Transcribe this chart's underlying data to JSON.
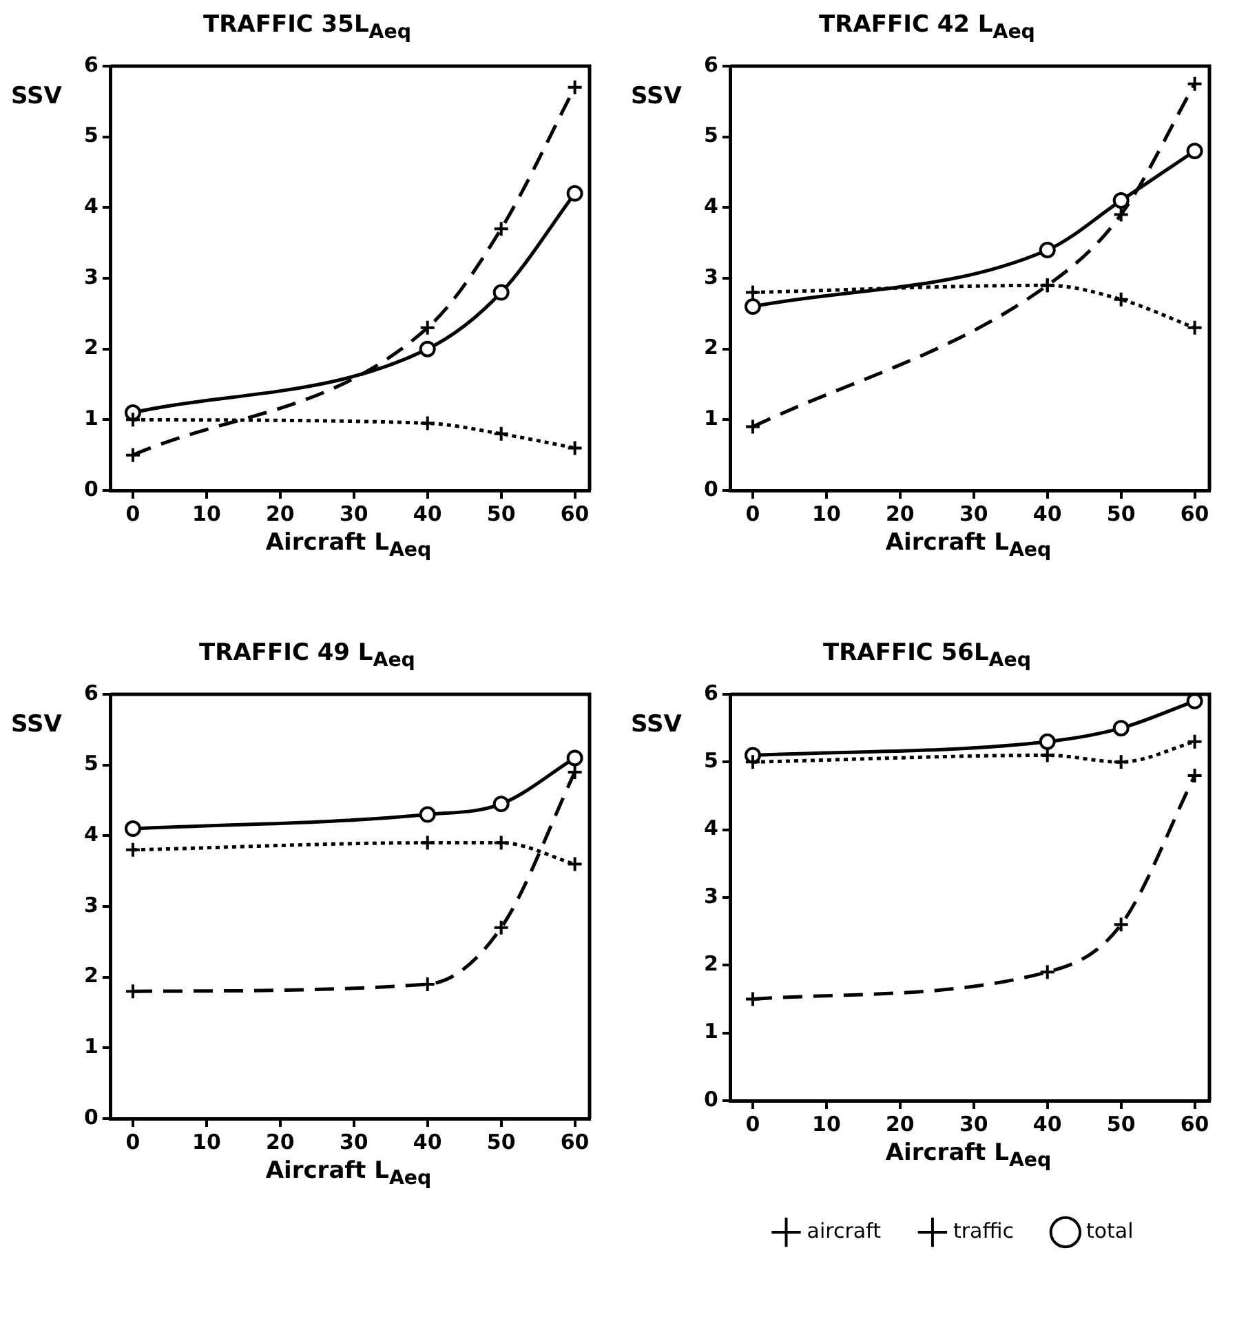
{
  "chart_data": [
    {
      "type": "line",
      "title": "TRAFFIC 35L$_{Aeq}$",
      "xlabel": "Aircraft L$_{Aeq}$",
      "ylabel": "SSV",
      "x": [
        0,
        40,
        50,
        60
      ],
      "xlim": [
        -3,
        62
      ],
      "xticks": [
        0,
        10,
        20,
        30,
        40,
        50,
        60
      ],
      "ylim": [
        0,
        6
      ],
      "yticks": [
        0,
        1,
        2,
        3,
        4,
        5,
        6
      ],
      "grid": false,
      "legend": false,
      "series": [
        {
          "color": "#000000",
          "marker": "cross",
          "line_style": "dashed",
          "values": [
            0.5,
            2.3,
            3.7,
            5.7
          ]
        },
        {
          "color": "#000000",
          "marker": "cross",
          "line_style": "dotted",
          "values": [
            1.0,
            0.95,
            0.8,
            0.6
          ]
        },
        {
          "color": "#000000",
          "marker": "circle",
          "line_style": "solid",
          "values": [
            1.1,
            2.0,
            2.8,
            4.2
          ]
        }
      ]
    },
    {
      "type": "line",
      "title": "TRAFFIC 42 L$_{Aeq}$",
      "xlabel": "Aircraft L$_{Aeq}$",
      "ylabel": "SSV",
      "x": [
        0,
        40,
        50,
        60
      ],
      "xlim": [
        -3,
        62
      ],
      "xticks": [
        0,
        10,
        20,
        30,
        40,
        50,
        60
      ],
      "ylim": [
        0,
        6
      ],
      "yticks": [
        0,
        1,
        2,
        3,
        4,
        5,
        6
      ],
      "grid": false,
      "legend": false,
      "series": [
        {
          "color": "#000000",
          "marker": "cross",
          "line_style": "dashed",
          "values": [
            0.9,
            2.9,
            3.9,
            5.75
          ]
        },
        {
          "color": "#000000",
          "marker": "cross",
          "line_style": "dotted",
          "values": [
            2.8,
            2.9,
            2.7,
            2.3
          ]
        },
        {
          "color": "#000000",
          "marker": "circle",
          "line_style": "solid",
          "values": [
            2.6,
            3.4,
            4.1,
            4.8
          ]
        }
      ]
    },
    {
      "type": "line",
      "title": "TRAFFIC 49 L$_{Aeq}$",
      "xlabel": "Aircraft L$_{Aeq}$",
      "ylabel": "SSV",
      "x": [
        0,
        40,
        50,
        60
      ],
      "xlim": [
        -3,
        62
      ],
      "xticks": [
        0,
        10,
        20,
        30,
        40,
        50,
        60
      ],
      "ylim": [
        0,
        6
      ],
      "yticks": [
        0,
        1,
        2,
        3,
        4,
        5,
        6
      ],
      "grid": false,
      "legend": false,
      "series": [
        {
          "color": "#000000",
          "marker": "cross",
          "line_style": "dashed",
          "values": [
            1.8,
            1.9,
            2.7,
            4.9
          ]
        },
        {
          "color": "#000000",
          "marker": "cross",
          "line_style": "dotted",
          "values": [
            3.8,
            3.9,
            3.9,
            3.6
          ]
        },
        {
          "color": "#000000",
          "marker": "circle",
          "line_style": "solid",
          "values": [
            4.1,
            4.3,
            4.45,
            5.1
          ]
        }
      ]
    },
    {
      "type": "line",
      "title": "TRAFFIC 56L$_{Aeq}$",
      "xlabel": "Aircraft L$_{Aeq}$",
      "ylabel": "SSV",
      "x": [
        0,
        40,
        50,
        60
      ],
      "xlim": [
        -3,
        62
      ],
      "xticks": [
        0,
        10,
        20,
        30,
        40,
        50,
        60
      ],
      "ylim": [
        0,
        6
      ],
      "yticks": [
        0,
        1,
        2,
        3,
        4,
        5,
        6
      ],
      "grid": false,
      "legend": "bottom",
      "series": [
        {
          "name": "aircraft",
          "color": "#000000",
          "marker": "cross",
          "line_style": "dashed",
          "values": [
            1.5,
            1.9,
            2.6,
            4.8
          ]
        },
        {
          "name": "traffic",
          "color": "#000000",
          "marker": "cross",
          "line_style": "dotted",
          "values": [
            5.0,
            5.1,
            5.0,
            5.3
          ]
        },
        {
          "name": "total",
          "color": "#000000",
          "marker": "circle",
          "line_style": "solid",
          "values": [
            5.1,
            5.3,
            5.5,
            5.9
          ]
        }
      ]
    }
  ]
}
